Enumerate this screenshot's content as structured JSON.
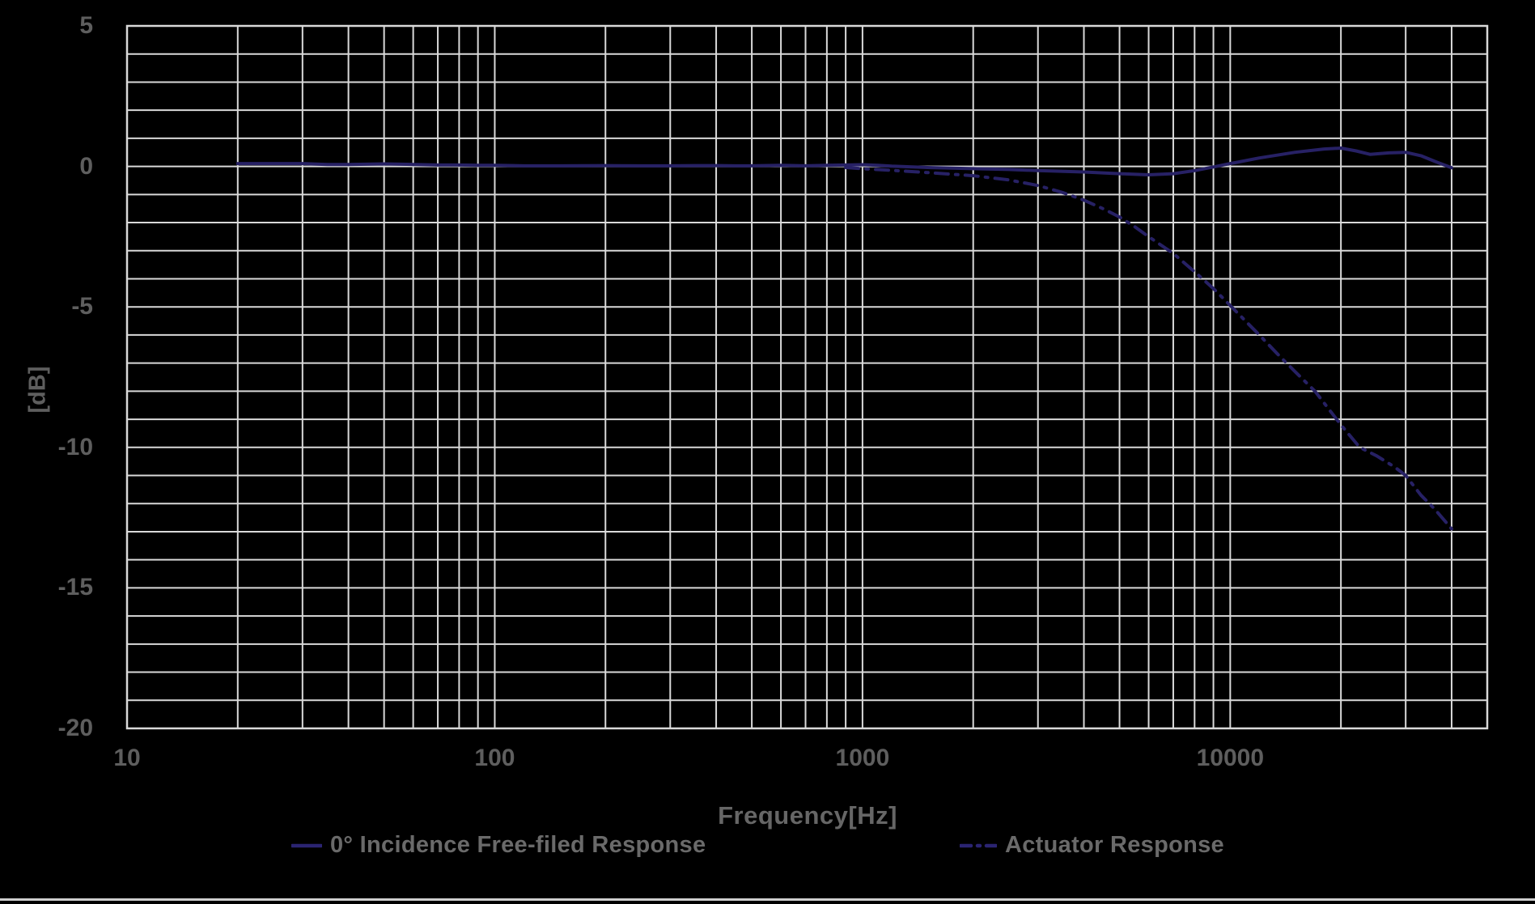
{
  "chart": {
    "background": "#000000",
    "grid_color": "#d9d9d9",
    "tick_color": "#5e5e5e",
    "text_color": "#6a6a6a",
    "series_color": "#272165"
  },
  "chart_data": {
    "type": "line",
    "title": "",
    "xlabel": "Frequency[Hz]",
    "ylabel": "[dB]",
    "x_scale": "log",
    "x_range": [
      10,
      50000
    ],
    "y_range": [
      -20,
      5
    ],
    "x_ticks": [
      10,
      100,
      1000,
      10000
    ],
    "x_tick_labels": [
      "10",
      "100",
      "1000",
      "10000"
    ],
    "y_ticks": [
      5,
      0,
      -5,
      -10,
      -15,
      -20
    ],
    "y_tick_labels": [
      "5",
      "0",
      "-5",
      "-10",
      "-15",
      "-20"
    ],
    "y_grid_step": 1,
    "grid": "on",
    "legend_position": "bottom",
    "series": [
      {
        "name": "0° Incidence Free-filed Response",
        "line_style": "solid",
        "color": "#272165",
        "points": [
          [
            20,
            0.1
          ],
          [
            25,
            0.1
          ],
          [
            30,
            0.1
          ],
          [
            35,
            0.07
          ],
          [
            40,
            0.07
          ],
          [
            50,
            0.09
          ],
          [
            60,
            0.07
          ],
          [
            70,
            0.05
          ],
          [
            80,
            0.05
          ],
          [
            90,
            0.04
          ],
          [
            100,
            0.04
          ],
          [
            120,
            0.02
          ],
          [
            150,
            0.02
          ],
          [
            200,
            0.03
          ],
          [
            250,
            0.02
          ],
          [
            300,
            0.02
          ],
          [
            350,
            0.03
          ],
          [
            400,
            0.03
          ],
          [
            450,
            0.02
          ],
          [
            500,
            0.02
          ],
          [
            600,
            0.04
          ],
          [
            700,
            0.02
          ],
          [
            800,
            0.04
          ],
          [
            900,
            0.05
          ],
          [
            1000,
            0.06
          ],
          [
            1100,
            0.04
          ],
          [
            1200,
            0.01
          ],
          [
            1500,
            -0.04
          ],
          [
            2000,
            -0.08
          ],
          [
            2500,
            -0.11
          ],
          [
            3000,
            -0.15
          ],
          [
            4000,
            -0.2
          ],
          [
            5000,
            -0.26
          ],
          [
            6000,
            -0.3
          ],
          [
            7000,
            -0.26
          ],
          [
            8000,
            -0.15
          ],
          [
            9000,
            -0.02
          ],
          [
            10000,
            0.1
          ],
          [
            12000,
            0.3
          ],
          [
            15000,
            0.5
          ],
          [
            18000,
            0.62
          ],
          [
            20000,
            0.65
          ],
          [
            22000,
            0.55
          ],
          [
            24000,
            0.43
          ],
          [
            27000,
            0.48
          ],
          [
            30000,
            0.5
          ],
          [
            33000,
            0.38
          ],
          [
            36000,
            0.18
          ],
          [
            40000,
            -0.05
          ]
        ]
      },
      {
        "name": "Actuator Response",
        "line_style": "dash-dot",
        "color": "#272165",
        "points": [
          [
            900,
            -0.04
          ],
          [
            1000,
            -0.08
          ],
          [
            1200,
            -0.14
          ],
          [
            1500,
            -0.22
          ],
          [
            2000,
            -0.33
          ],
          [
            2500,
            -0.48
          ],
          [
            3000,
            -0.68
          ],
          [
            3500,
            -0.93
          ],
          [
            4000,
            -1.2
          ],
          [
            4500,
            -1.5
          ],
          [
            5000,
            -1.8
          ],
          [
            5500,
            -2.15
          ],
          [
            6000,
            -2.5
          ],
          [
            7000,
            -3.1
          ],
          [
            8000,
            -3.75
          ],
          [
            9000,
            -4.35
          ],
          [
            10000,
            -4.95
          ],
          [
            11000,
            -5.5
          ],
          [
            12000,
            -6.0
          ],
          [
            13500,
            -6.7
          ],
          [
            15000,
            -7.3
          ],
          [
            17000,
            -8.0
          ],
          [
            20000,
            -9.2
          ],
          [
            22500,
            -10.0
          ],
          [
            25000,
            -10.3
          ],
          [
            28000,
            -10.7
          ],
          [
            30000,
            -11.0
          ],
          [
            33000,
            -11.7
          ],
          [
            36000,
            -12.2
          ],
          [
            40000,
            -12.9
          ]
        ]
      }
    ]
  }
}
